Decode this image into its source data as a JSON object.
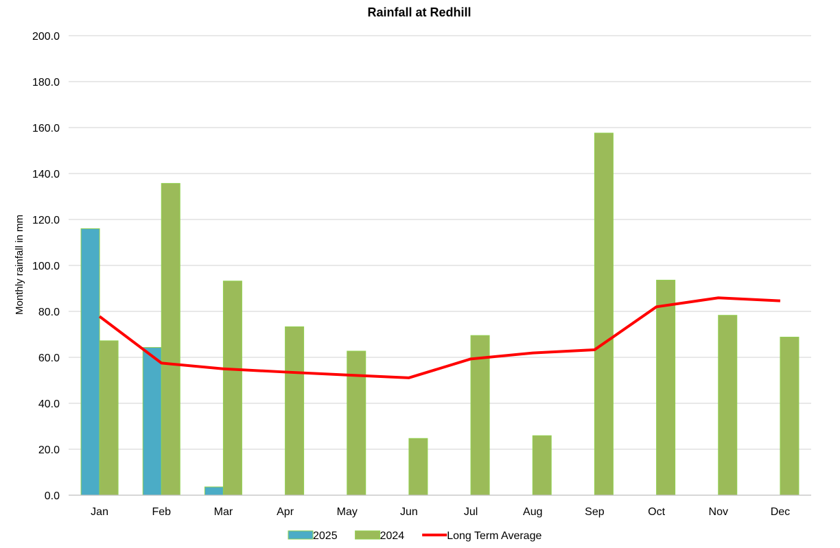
{
  "chart_data": {
    "type": "bar",
    "title": "Rainfall at Redhill",
    "xlabel": "",
    "ylabel": "Monthly rainfall in mm",
    "ylim": [
      0,
      200
    ],
    "yticks": [
      "0.0",
      "20.0",
      "40.0",
      "60.0",
      "80.0",
      "100.0",
      "120.0",
      "140.0",
      "160.0",
      "180.0",
      "200.0"
    ],
    "grid": true,
    "legend_position": "bottom",
    "categories": [
      "Jan",
      "Feb",
      "Mar",
      "Apr",
      "May",
      "Jun",
      "Jul",
      "Aug",
      "Sep",
      "Oct",
      "Nov",
      "Dec"
    ],
    "series": [
      {
        "name": "2025",
        "kind": "bar",
        "color": "#4bacc6",
        "values": [
          116.0,
          64.3,
          3.6,
          null,
          null,
          null,
          null,
          null,
          null,
          null,
          null,
          null
        ]
      },
      {
        "name": "2024",
        "kind": "bar",
        "color": "#9bbb59",
        "values": [
          67.2,
          135.7,
          93.2,
          73.3,
          62.7,
          24.7,
          69.5,
          25.9,
          157.6,
          93.6,
          78.3,
          68.8
        ]
      },
      {
        "name": "Long Term Average",
        "kind": "line",
        "color": "#ff0000",
        "values": [
          77.8,
          57.5,
          55.0,
          53.6,
          52.3,
          51.1,
          59.3,
          61.9,
          63.3,
          82.0,
          85.9,
          84.6
        ]
      }
    ]
  }
}
